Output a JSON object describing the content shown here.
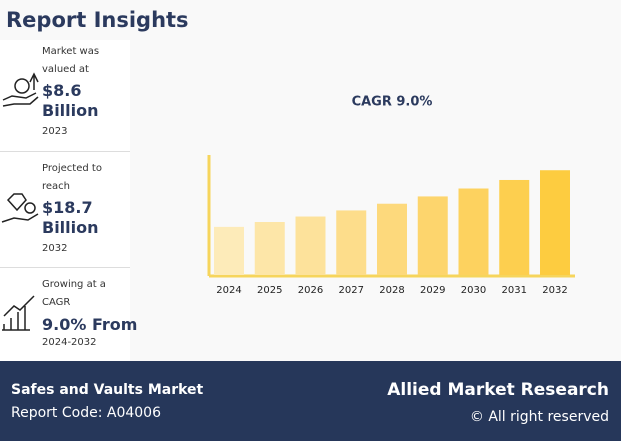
{
  "header": {
    "title": "Report Insights"
  },
  "insights": [
    {
      "line": "Market was valued at",
      "value": "$8.6 Billion",
      "year": "2023"
    },
    {
      "line": "Projected to reach",
      "value": "$18.7 Billion",
      "year": "2032"
    },
    {
      "line": "Growing at a CAGR",
      "value": "9.0% From",
      "year": "2024-2032"
    }
  ],
  "chart_data": {
    "type": "bar",
    "title": "CAGR 9.0%",
    "categories": [
      "2024",
      "2025",
      "2026",
      "2027",
      "2028",
      "2029",
      "2030",
      "2031",
      "2032"
    ],
    "values": [
      9.4,
      10.2,
      11.1,
      12.1,
      13.2,
      14.4,
      15.7,
      17.1,
      18.7
    ],
    "colors": [
      "#fdebb9",
      "#fde6a8",
      "#fde29b",
      "#fddd8b",
      "#fdd97c",
      "#fdd56d",
      "#fdd25f",
      "#fdcf4f",
      "#fdcc40"
    ],
    "ylim": [
      1.5,
      21.2
    ]
  },
  "footer": {
    "market": "Safes and Vaults Market",
    "code": "Report Code: A04006",
    "brand": "Allied Market Research",
    "rights": "© All right reserved"
  }
}
